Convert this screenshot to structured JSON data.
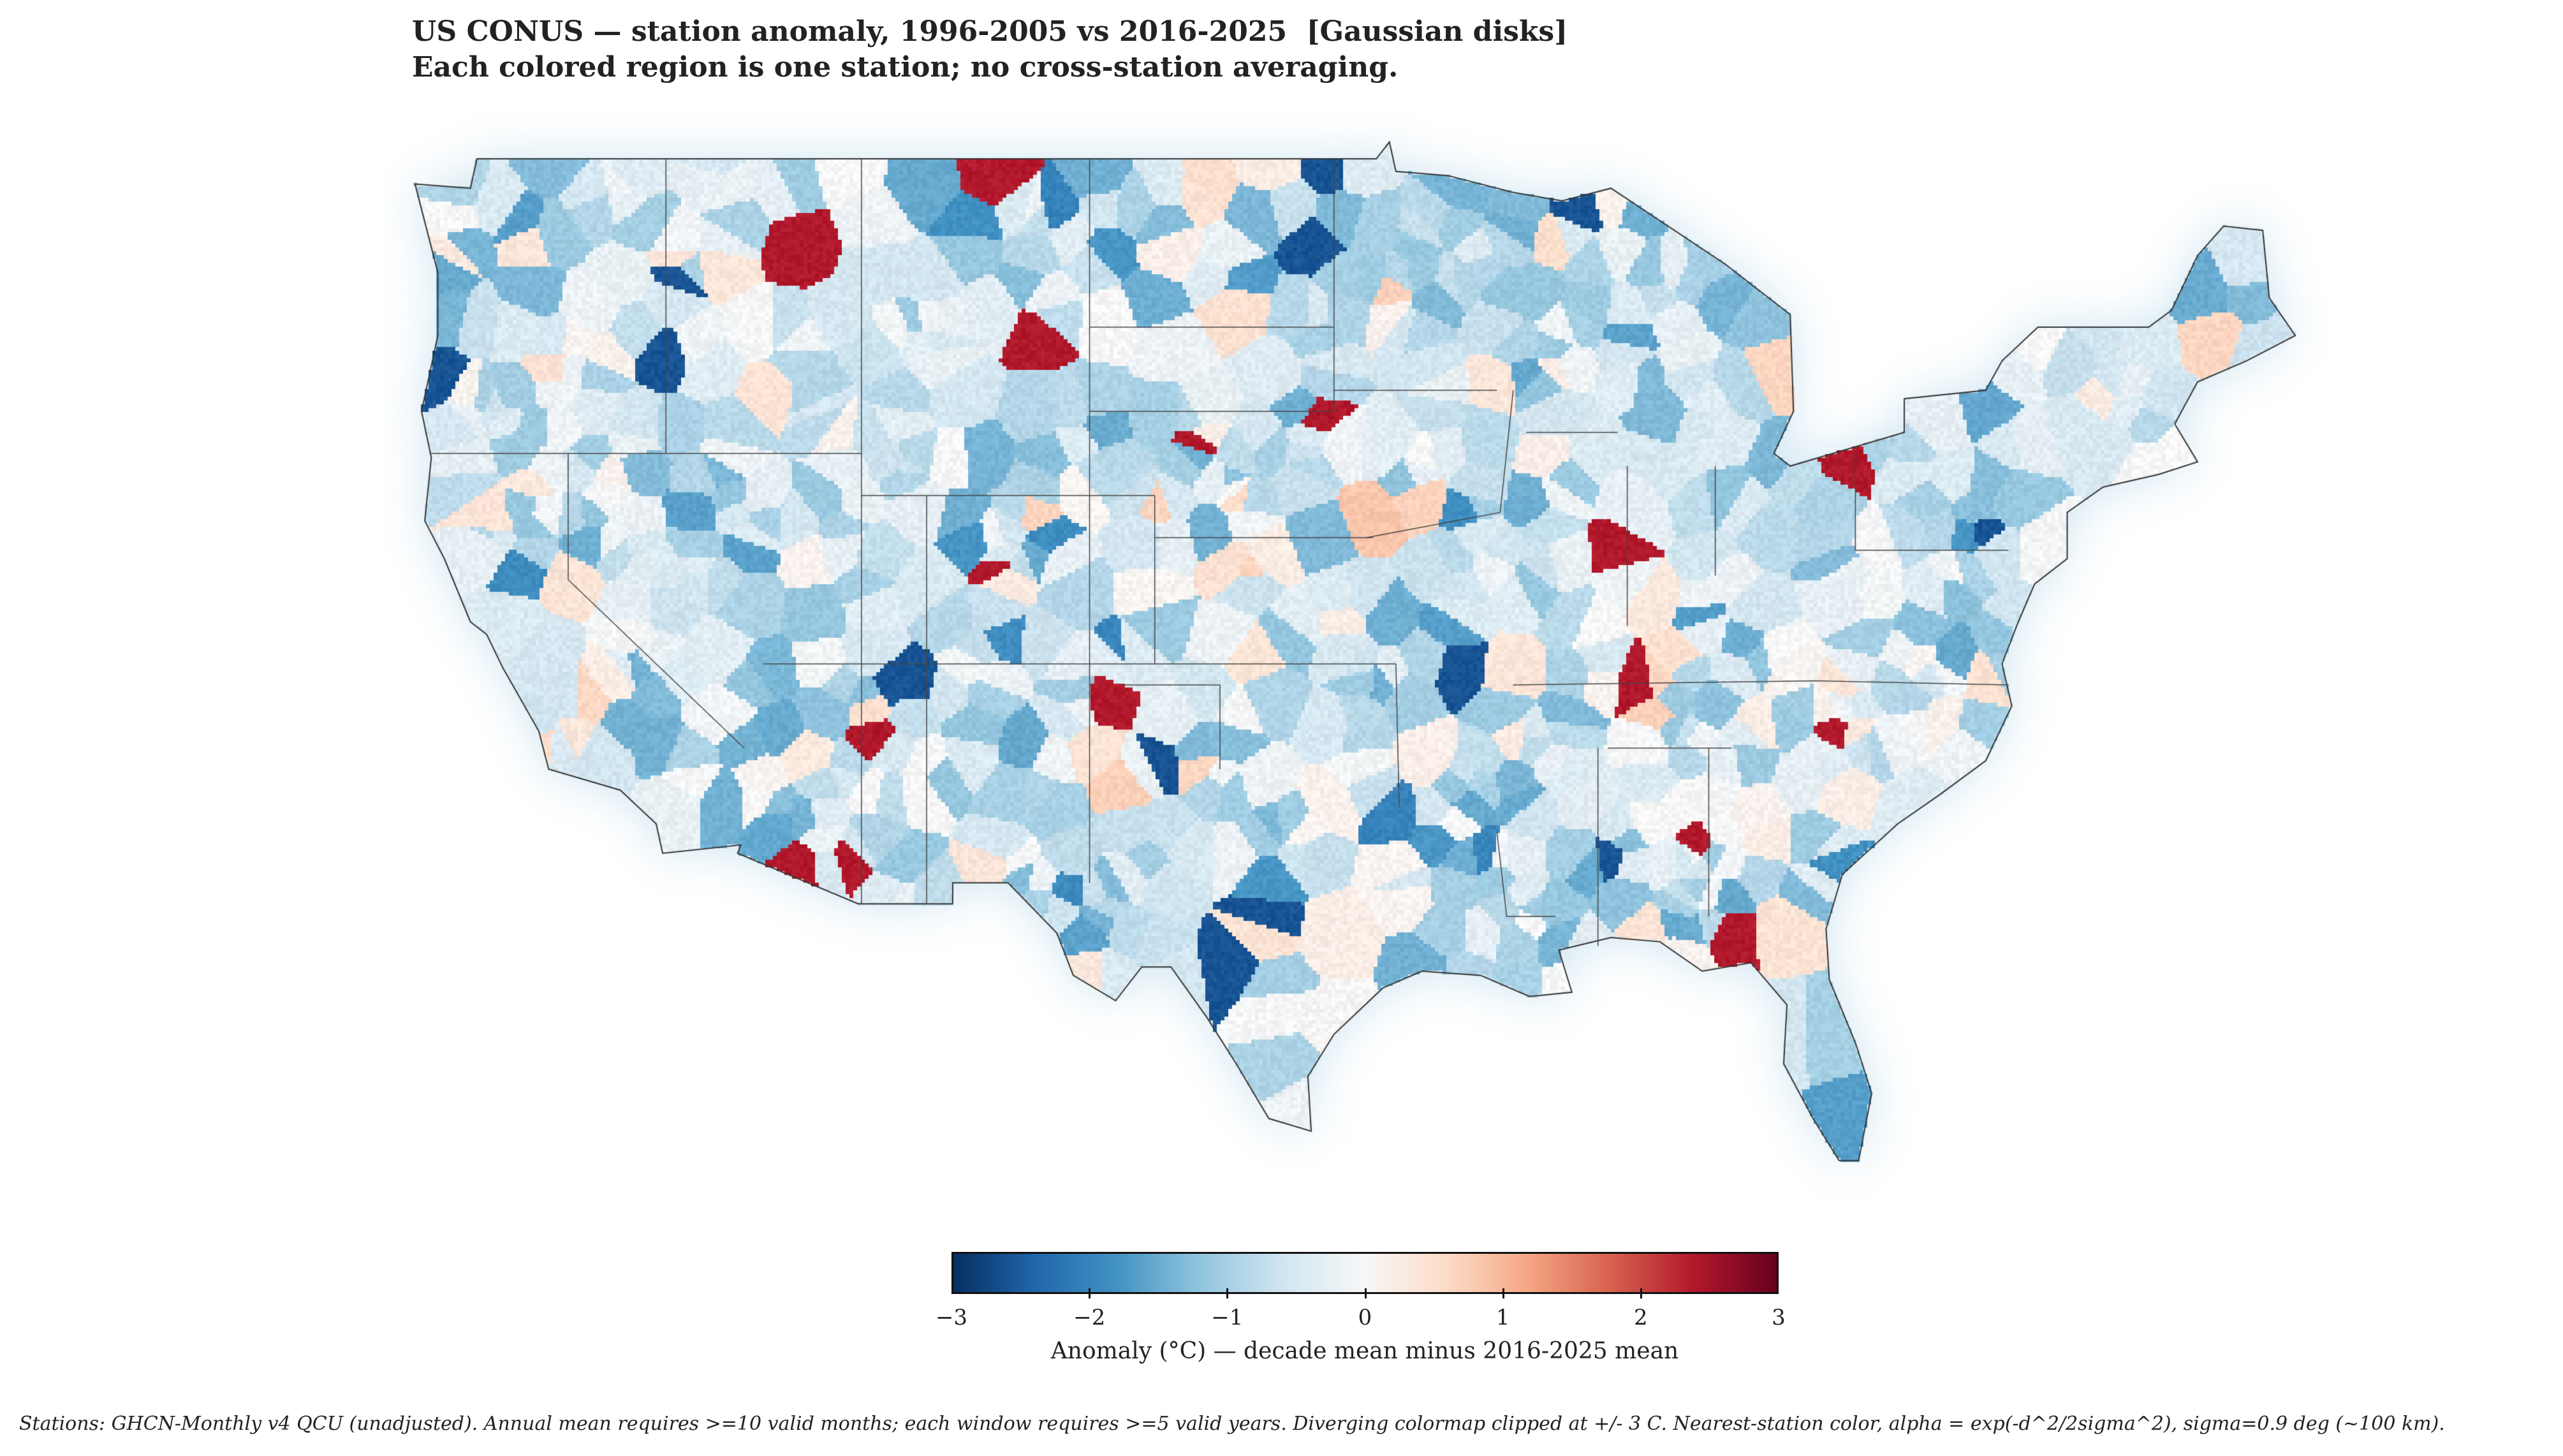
{
  "title": {
    "line1": "US CONUS — station anomaly, 1996-2005 vs 2016-2025  [Gaussian disks]",
    "line2": "Each colored region is one station; no cross-station averaging."
  },
  "map": {
    "region": "Contiguous United States",
    "style": "nearest-station colored regions with Gaussian alpha fade, state borders",
    "colormap": "diverging blue-white-red",
    "colors": [
      "#053061",
      "#2166ac",
      "#4393c3",
      "#92c5de",
      "#d1e5f0",
      "#f7f7f7",
      "#fddbc7",
      "#f4a582",
      "#d6604d",
      "#b2182b",
      "#67001f"
    ]
  },
  "colorbar": {
    "range": [
      -3,
      3
    ],
    "ticks": [
      "−3",
      "−2",
      "−1",
      "0",
      "1",
      "2",
      "3"
    ],
    "label": "Anomaly (°C) — decade mean minus 2016-2025 mean"
  },
  "footer": "Stations: GHCN-Monthly v4 QCU (unadjusted). Annual mean requires >=10 valid months; each window requires >=5 valid years. Diverging colormap clipped at +/- 3 C. Nearest-station color, alpha = exp(-d^2/2sigma^2), sigma=0.9 deg (~100 km)."
}
